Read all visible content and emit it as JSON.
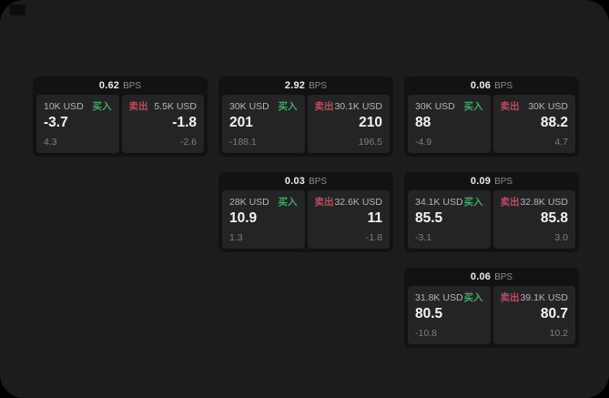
{
  "app": {
    "background_color": "#000000",
    "surface_color": "#1c1c1e",
    "card_color": "#121214",
    "panel_color": "#242426",
    "buy_color": "#42a766",
    "sell_color": "#bf4a5e",
    "price_color": "#f3f3f3",
    "muted_color": "#7f7f7f"
  },
  "labels": {
    "bps_suffix": "BPS",
    "buy": "买入",
    "sell": "卖出"
  },
  "cards": [
    {
      "row": 1,
      "col": 1,
      "bps": "0.62",
      "buy": {
        "amount": "10K USD",
        "price": "-3.7",
        "delta": "4.3"
      },
      "sell": {
        "amount": "5.5K USD",
        "price": "-1.8",
        "delta": "-2.6"
      }
    },
    {
      "row": 1,
      "col": 2,
      "bps": "2.92",
      "buy": {
        "amount": "30K USD",
        "price": "201",
        "delta": "-188.1"
      },
      "sell": {
        "amount": "30.1K USD",
        "price": "210",
        "delta": "196.5"
      }
    },
    {
      "row": 1,
      "col": 3,
      "bps": "0.06",
      "buy": {
        "amount": "30K USD",
        "price": "88",
        "delta": "-4.9"
      },
      "sell": {
        "amount": "30K USD",
        "price": "88.2",
        "delta": "4.7"
      }
    },
    {
      "row": 2,
      "col": 2,
      "bps": "0.03",
      "buy": {
        "amount": "28K USD",
        "price": "10.9",
        "delta": "1.3"
      },
      "sell": {
        "amount": "32.6K USD",
        "price": "11",
        "delta": "-1.8"
      }
    },
    {
      "row": 2,
      "col": 3,
      "bps": "0.09",
      "buy": {
        "amount": "34.1K USD",
        "price": "85.5",
        "delta": "-3.1"
      },
      "sell": {
        "amount": "32.8K USD",
        "price": "85.8",
        "delta": "3.0"
      }
    },
    {
      "row": 3,
      "col": 3,
      "bps": "0.06",
      "buy": {
        "amount": "31.8K USD",
        "price": "80.5",
        "delta": "-10.8"
      },
      "sell": {
        "amount": "39.1K USD",
        "price": "80.7",
        "delta": "10.2"
      }
    }
  ]
}
